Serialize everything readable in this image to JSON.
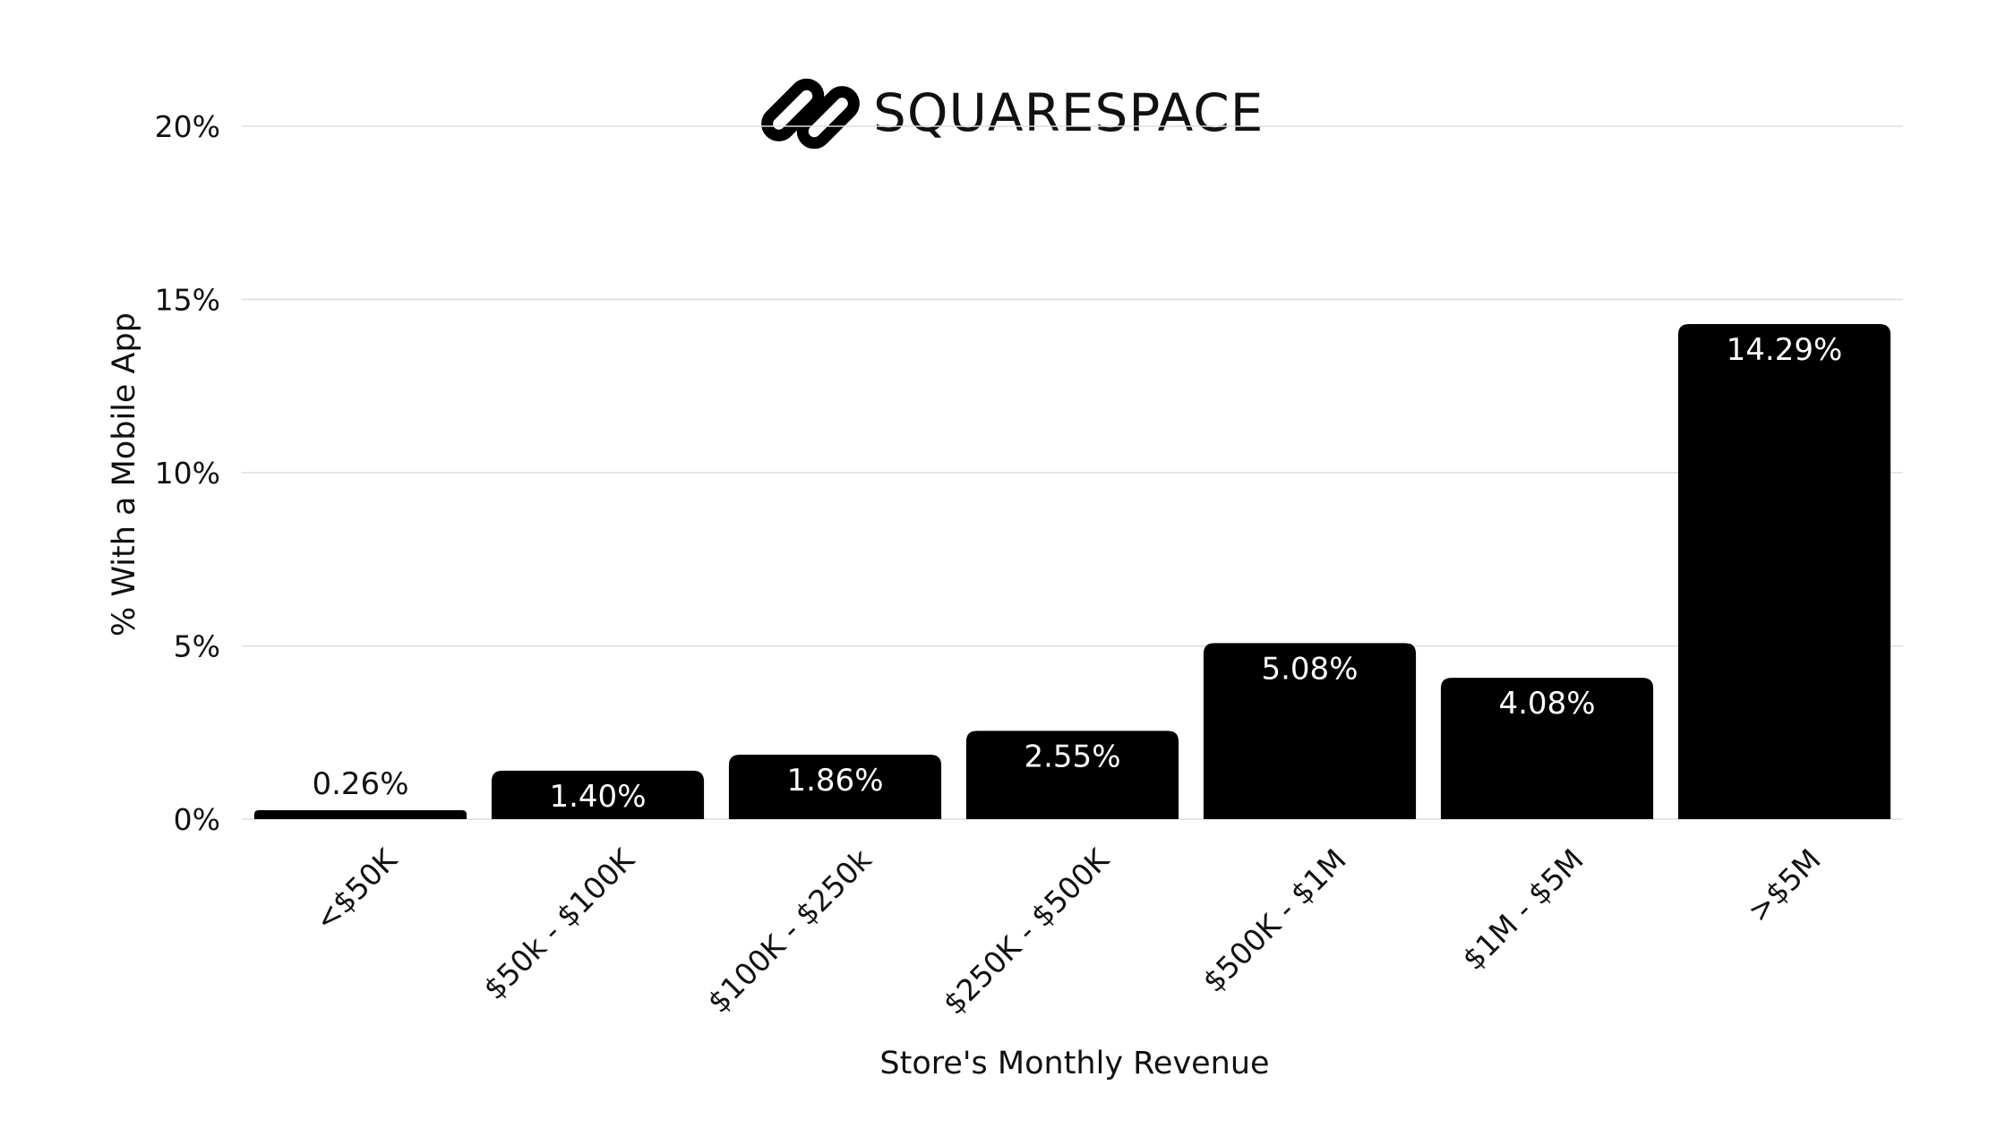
{
  "brand": {
    "logo_icon": "squarespace-logo-icon",
    "name": "SQUARESPACE"
  },
  "colors": {
    "bar": "#000000",
    "grid": "#dddddd",
    "text": "#111111",
    "label_inside": "#ffffff",
    "label_outside": "#111111"
  },
  "chart_data": {
    "type": "bar",
    "categories": [
      "<$50K",
      "$50k - $100K",
      "$100K - $250k",
      "$250K - $500K",
      "$500K - $1M",
      "$1M - $5M",
      ">$5M"
    ],
    "values": [
      0.26,
      1.4,
      1.86,
      2.55,
      5.08,
      4.08,
      14.29
    ],
    "data_labels": [
      "0.26%",
      "1.40%",
      "1.86%",
      "2.55%",
      "5.08%",
      "4.08%",
      "14.29%"
    ],
    "xlabel": "Store's Monthly Revenue",
    "ylabel": "% With a Mobile App",
    "ylim": [
      0,
      20
    ],
    "yticks": [
      0,
      5,
      10,
      15,
      20
    ],
    "ytick_labels": [
      "0%",
      "5%",
      "10%",
      "15%",
      "20%"
    ],
    "grid": true,
    "legend": false
  }
}
